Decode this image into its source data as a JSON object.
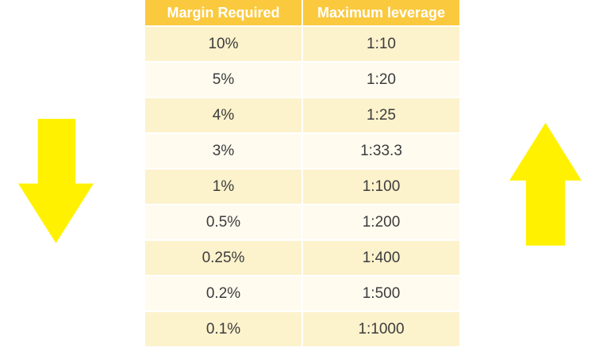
{
  "chart_data": {
    "type": "table",
    "columns": [
      "Margin Required",
      "Maximum leverage"
    ],
    "rows": [
      [
        "10%",
        "1:10"
      ],
      [
        "5%",
        "1:20"
      ],
      [
        "4%",
        "1:25"
      ],
      [
        "3%",
        "1:33.3"
      ],
      [
        "1%",
        "1:100"
      ],
      [
        "0.5%",
        "1:200"
      ],
      [
        "0.25%",
        "1:400"
      ],
      [
        "0.2%",
        "1:500"
      ],
      [
        "0.1%",
        "1:1000"
      ]
    ]
  },
  "icons": {
    "left": "down-arrow-icon",
    "right": "up-arrow-icon"
  },
  "colors": {
    "header_bg": "#fbc93e",
    "header_text": "#ffffff",
    "row_odd_bg": "#fcf2cc",
    "row_even_bg": "#fffbef",
    "cell_text": "#3c3c3c",
    "arrow": "#fff100",
    "background": "#ffffff"
  }
}
